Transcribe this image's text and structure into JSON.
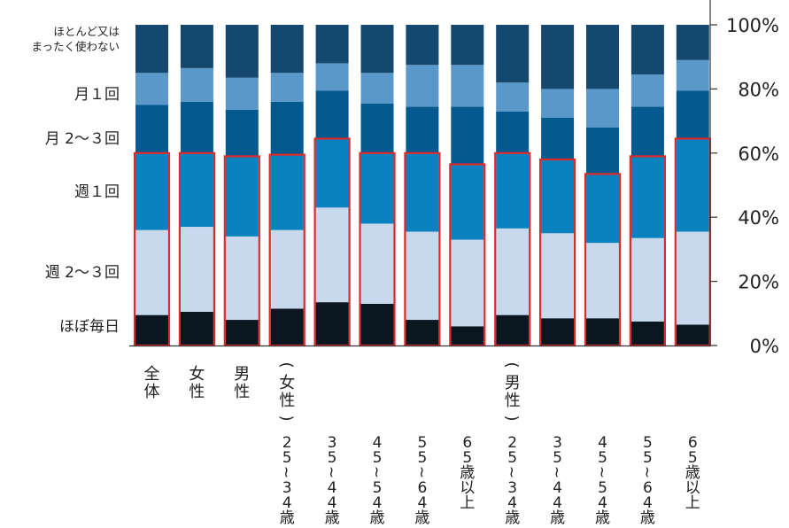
{
  "chart_data": {
    "type": "bar",
    "stacked": true,
    "orientation": "vertical",
    "yaxis": {
      "position": "right",
      "range": [
        0,
        100
      ],
      "ticks": [
        "0%",
        "20%",
        "40%",
        "60%",
        "80%",
        "100%"
      ]
    },
    "legend": {
      "placement": "left",
      "entries": [
        "ほぼ毎日",
        "週 2〜３回",
        "週１回",
        "月 2〜３回",
        "月１回",
        "ほとんど又は\nまったく使わない"
      ]
    },
    "category_groups": [
      "全体",
      "女性",
      "男性",
      "（女性）",
      "（男性）"
    ],
    "categories": [
      "全体",
      "女性",
      "男性",
      "25〜34歳",
      "35〜44歳",
      "45〜54歳",
      "55〜64歳",
      "65歳以上",
      "25〜34歳",
      "35〜44歳",
      "45〜54歳",
      "55〜64歳",
      "65歳以上"
    ],
    "series": [
      {
        "name": "ほぼ毎日",
        "color": "#0a1620",
        "values": [
          9.5,
          10.5,
          8,
          11.5,
          13.5,
          13,
          8,
          6,
          9.5,
          8.5,
          8.5,
          7.5,
          6.5
        ]
      },
      {
        "name": "週 2〜３回",
        "color": "#c8d9ee",
        "values": [
          26.5,
          26.5,
          26,
          24.5,
          29.5,
          25,
          27.5,
          27,
          27,
          26.5,
          23.5,
          26,
          29
        ]
      },
      {
        "name": "週１回",
        "color": "#0a82bf",
        "values": [
          24,
          23,
          25,
          23.5,
          21.5,
          22,
          24.5,
          23.5,
          23.5,
          23,
          21.5,
          25.5,
          29
        ]
      },
      {
        "name": "月 2〜３回",
        "color": "#04598e",
        "values": [
          15,
          16,
          14.5,
          16.5,
          15,
          15.5,
          14.5,
          18,
          13,
          13,
          14.5,
          15.5,
          15
        ]
      },
      {
        "name": "月１回",
        "color": "#5a98c9",
        "values": [
          10,
          10.5,
          10,
          9,
          8.5,
          9.5,
          13,
          13,
          9,
          9,
          12,
          10,
          9.5
        ]
      },
      {
        "name": "ほとんど又は\nまったく使わない",
        "color": "#15486e",
        "values": [
          15,
          13.5,
          16.5,
          15,
          12,
          15,
          12.5,
          12.5,
          18,
          20,
          20,
          15.5,
          11
        ]
      }
    ],
    "highlight": {
      "series_included": [
        "ほぼ毎日",
        "週 2〜３回",
        "週１回"
      ],
      "outline_color": "#dd2a2a"
    }
  }
}
